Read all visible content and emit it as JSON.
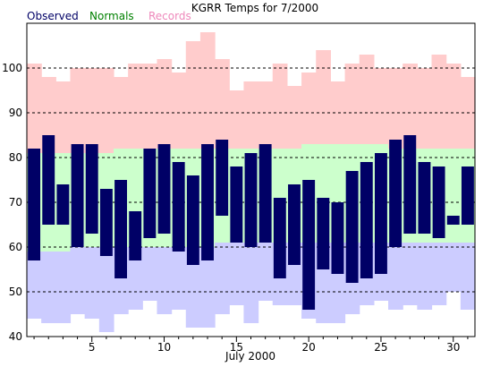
{
  "chart_data": {
    "type": "bar",
    "title": "KGRR Temps for 7/2000",
    "xlabel": "July 2000",
    "ylabel": "",
    "legend": [
      {
        "name": "Observed",
        "color": "#000066"
      },
      {
        "name": "Normals",
        "color": "#008000"
      },
      {
        "name": "Records",
        "color": "#ee88bb"
      }
    ],
    "legend_placement": "top-left",
    "xlim": [
      0.5,
      31.5
    ],
    "ylim": [
      40,
      110
    ],
    "x_ticks": [
      5,
      10,
      15,
      20,
      25,
      30
    ],
    "y_ticks": [
      40,
      50,
      60,
      70,
      80,
      90,
      100
    ],
    "grid_lines": [
      50,
      60,
      70,
      80,
      90,
      100
    ],
    "colors": {
      "record_band": "#ffcccc",
      "normal_band": "#ccffcc",
      "low_band": "#ccccff",
      "observed_bar": "#000066",
      "grid": "#000000"
    },
    "days": [
      1,
      2,
      3,
      4,
      5,
      6,
      7,
      8,
      9,
      10,
      11,
      12,
      13,
      14,
      15,
      16,
      17,
      18,
      19,
      20,
      21,
      22,
      23,
      24,
      25,
      26,
      27,
      28,
      29,
      30,
      31
    ],
    "record_high": [
      101,
      98,
      97,
      100,
      100,
      100,
      98,
      101,
      101,
      102,
      99,
      106,
      108,
      102,
      95,
      97,
      97,
      101,
      96,
      99,
      104,
      97,
      101,
      103,
      100,
      100,
      101,
      100,
      103,
      101,
      98
    ],
    "normal_high": [
      81,
      81,
      81,
      81,
      81,
      81,
      82,
      82,
      82,
      82,
      82,
      82,
      82,
      82,
      82,
      82,
      82,
      82,
      82,
      83,
      83,
      83,
      83,
      83,
      83,
      82,
      82,
      82,
      82,
      82,
      82
    ],
    "normal_low": [
      59,
      59,
      59,
      60,
      60,
      60,
      60,
      60,
      60,
      60,
      60,
      60,
      60,
      61,
      61,
      61,
      61,
      61,
      61,
      61,
      61,
      61,
      61,
      61,
      61,
      61,
      61,
      61,
      61,
      61,
      61
    ],
    "record_low": [
      44,
      43,
      43,
      45,
      44,
      41,
      45,
      46,
      48,
      45,
      46,
      42,
      42,
      45,
      47,
      43,
      48,
      47,
      47,
      44,
      43,
      43,
      45,
      47,
      48,
      46,
      47,
      46,
      47,
      50,
      46
    ],
    "observed_high": [
      82,
      85,
      74,
      83,
      83,
      73,
      75,
      68,
      82,
      83,
      79,
      76,
      83,
      84,
      78,
      81,
      83,
      71,
      74,
      75,
      71,
      70,
      77,
      79,
      81,
      84,
      85,
      79,
      78,
      67,
      78
    ],
    "observed_low": [
      57,
      65,
      65,
      60,
      63,
      58,
      53,
      57,
      62,
      63,
      59,
      56,
      57,
      67,
      61,
      60,
      61,
      53,
      56,
      46,
      55,
      54,
      52,
      53,
      54,
      60,
      63,
      63,
      62,
      65,
      65
    ]
  }
}
